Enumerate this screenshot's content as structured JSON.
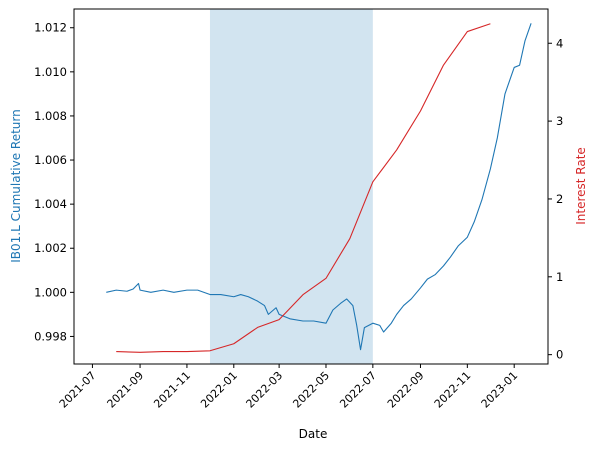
{
  "chart_data": {
    "type": "line",
    "title": "",
    "xlabel": "Date",
    "ylabel_left": "IB01.L Cumulative Return",
    "ylabel_right": "Interest Rate",
    "left_color": "#1f77b4",
    "right_color": "#d62728",
    "shade_color": "#1f77b4",
    "x_ticks": [
      "2021-07",
      "2021-09",
      "2021-11",
      "2022-01",
      "2022-03",
      "2022-05",
      "2022-07",
      "2022-09",
      "2022-11",
      "2023-01"
    ],
    "y_left_ticks": [
      "0.998",
      "1.000",
      "1.002",
      "1.004",
      "1.006",
      "1.008",
      "1.010",
      "1.012"
    ],
    "y_right_ticks": [
      "0",
      "1",
      "2",
      "3",
      "4"
    ],
    "y_left_range": [
      0.99675,
      1.01285
    ],
    "y_right_range": [
      -0.12,
      4.44
    ],
    "x_range": [
      "2021-06-07",
      "2023-02-14"
    ],
    "shaded_region": {
      "start": "2021-12-01",
      "end": "2022-07-01"
    },
    "series": [
      {
        "axis": "left",
        "color": "#1f77b4",
        "points": [
          [
            "2021-07-19",
            1.0
          ],
          [
            "2021-08-01",
            1.0001
          ],
          [
            "2021-08-15",
            1.00005
          ],
          [
            "2021-08-23",
            1.00015
          ],
          [
            "2021-08-30",
            1.0004
          ],
          [
            "2021-09-01",
            1.0001
          ],
          [
            "2021-09-15",
            1.0
          ],
          [
            "2021-10-01",
            1.0001
          ],
          [
            "2021-10-15",
            1.0
          ],
          [
            "2021-11-01",
            1.0001
          ],
          [
            "2021-11-15",
            1.0001
          ],
          [
            "2021-12-01",
            0.9999
          ],
          [
            "2021-12-15",
            0.9999
          ],
          [
            "2022-01-01",
            0.9998
          ],
          [
            "2022-01-10",
            0.9999
          ],
          [
            "2022-01-20",
            0.9998
          ],
          [
            "2022-02-01",
            0.9996
          ],
          [
            "2022-02-10",
            0.9994
          ],
          [
            "2022-02-15",
            0.999
          ],
          [
            "2022-02-25",
            0.9993
          ],
          [
            "2022-03-01",
            0.999
          ],
          [
            "2022-03-15",
            0.9988
          ],
          [
            "2022-04-01",
            0.9987
          ],
          [
            "2022-04-15",
            0.9987
          ],
          [
            "2022-05-01",
            0.9986
          ],
          [
            "2022-05-10",
            0.9992
          ],
          [
            "2022-05-20",
            0.9995
          ],
          [
            "2022-05-28",
            0.9997
          ],
          [
            "2022-06-05",
            0.9994
          ],
          [
            "2022-06-10",
            0.9985
          ],
          [
            "2022-06-15",
            0.9974
          ],
          [
            "2022-06-20",
            0.9984
          ],
          [
            "2022-07-01",
            0.9986
          ],
          [
            "2022-07-10",
            0.9985
          ],
          [
            "2022-07-15",
            0.9982
          ],
          [
            "2022-07-25",
            0.9986
          ],
          [
            "2022-08-01",
            0.999
          ],
          [
            "2022-08-10",
            0.9994
          ],
          [
            "2022-08-20",
            0.9997
          ],
          [
            "2022-09-01",
            1.0002
          ],
          [
            "2022-09-10",
            1.0006
          ],
          [
            "2022-09-20",
            1.0008
          ],
          [
            "2022-10-01",
            1.0012
          ],
          [
            "2022-10-10",
            1.0016
          ],
          [
            "2022-10-20",
            1.0021
          ],
          [
            "2022-11-01",
            1.0025
          ],
          [
            "2022-11-10",
            1.0032
          ],
          [
            "2022-11-20",
            1.0042
          ],
          [
            "2022-12-01",
            1.0056
          ],
          [
            "2022-12-10",
            1.007
          ],
          [
            "2022-12-20",
            1.009
          ],
          [
            "2023-01-01",
            1.0102
          ],
          [
            "2023-01-08",
            1.0103
          ],
          [
            "2023-01-15",
            1.0114
          ],
          [
            "2023-01-23",
            1.0122
          ]
        ]
      },
      {
        "axis": "right",
        "color": "#d62728",
        "points": [
          [
            "2021-08-01",
            0.04
          ],
          [
            "2021-09-01",
            0.03
          ],
          [
            "2021-10-01",
            0.04
          ],
          [
            "2021-11-01",
            0.04
          ],
          [
            "2021-12-01",
            0.05
          ],
          [
            "2022-01-01",
            0.14
          ],
          [
            "2022-02-01",
            0.35
          ],
          [
            "2022-03-01",
            0.45
          ],
          [
            "2022-04-01",
            0.77
          ],
          [
            "2022-05-01",
            0.98
          ],
          [
            "2022-06-01",
            1.49
          ],
          [
            "2022-07-01",
            2.22
          ],
          [
            "2022-08-01",
            2.63
          ],
          [
            "2022-09-01",
            3.13
          ],
          [
            "2022-10-01",
            3.72
          ],
          [
            "2022-11-01",
            4.15
          ],
          [
            "2022-12-01",
            4.25
          ]
        ]
      }
    ]
  }
}
